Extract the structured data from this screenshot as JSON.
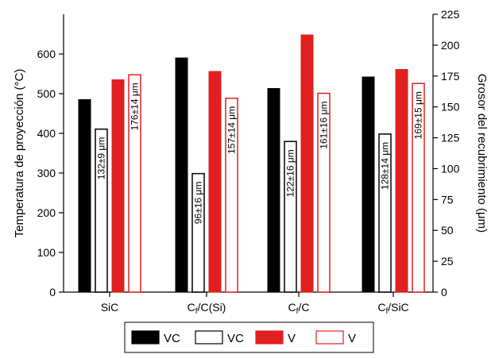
{
  "chart_data": {
    "type": "bar",
    "categories": [
      "SiC",
      "Cf/C(Si)",
      "Cf/C",
      "Cf/SiC"
    ],
    "category_labels": [
      {
        "main": "SiC",
        "sub": "",
        "rest": ""
      },
      {
        "main": "C",
        "sub": "f",
        "rest": "/C(Si)"
      },
      {
        "main": "C",
        "sub": "f",
        "rest": "/C"
      },
      {
        "main": "C",
        "sub": "f",
        "rest": "/SiC"
      }
    ],
    "ylabel_left": "Temperatura de proyección (°C)",
    "ylabel_right": "Grosor del recubrimiento (μm)",
    "ylim_left": [
      0,
      700
    ],
    "ylim_right": [
      0,
      225
    ],
    "yticks_left": [
      0,
      100,
      200,
      300,
      400,
      500,
      600
    ],
    "yticks_right": [
      0,
      25,
      50,
      75,
      100,
      125,
      150,
      175,
      200,
      225
    ],
    "grid": false,
    "legend_position": "bottom",
    "series": [
      {
        "name": "VC",
        "axis": "left",
        "style": "filled",
        "color": "#000000",
        "values": [
          485,
          590,
          513,
          542
        ]
      },
      {
        "name": "VC",
        "axis": "right",
        "style": "outline",
        "color": "#000000",
        "values": [
          132,
          96,
          122,
          128
        ],
        "labels": [
          "132±9 μm",
          "96±16 μm",
          "122±16 μm",
          "128±14 μm"
        ]
      },
      {
        "name": "V",
        "axis": "left",
        "style": "filled",
        "color": "#e0201e",
        "values": [
          535,
          556,
          648,
          561
        ]
      },
      {
        "name": "V",
        "axis": "right",
        "style": "outline",
        "color": "#e0201e",
        "values": [
          176,
          157,
          161,
          169
        ],
        "labels": [
          "176±14 μm",
          "157±14 μm",
          "161±16 μm",
          "169±15 μm"
        ]
      }
    ]
  }
}
